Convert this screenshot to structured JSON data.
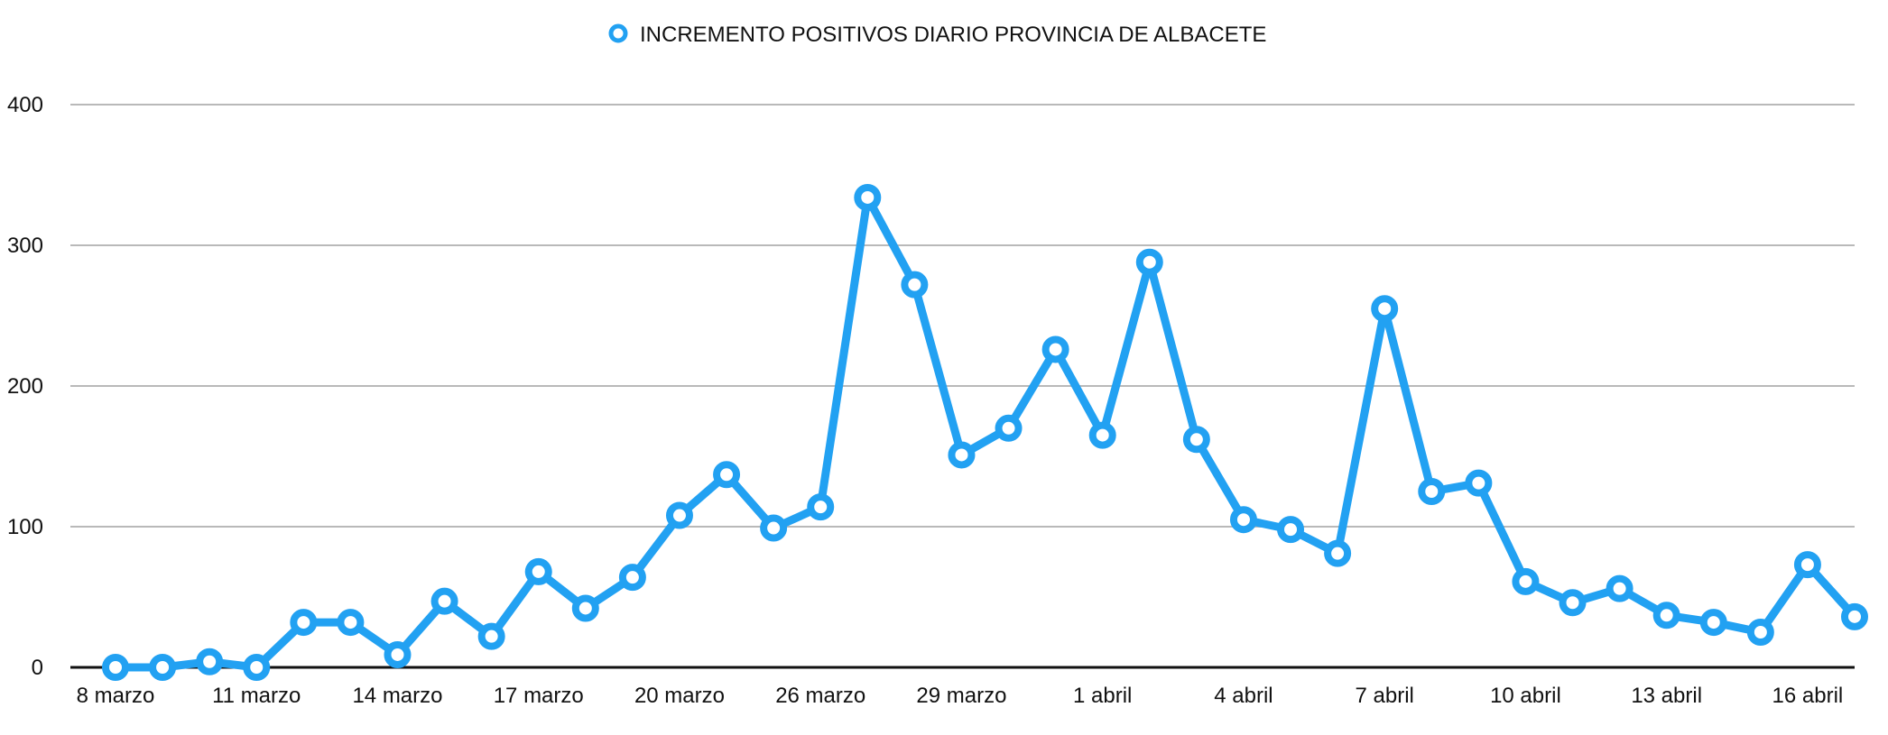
{
  "chart_data": {
    "type": "line",
    "title": "",
    "xlabel": "",
    "ylabel": "",
    "legend": {
      "position": "top-center",
      "label": "INCREMENTO POSITIVOS DIARIO PROVINCIA DE ALBACETE"
    },
    "grid": true,
    "ylim": [
      0,
      400
    ],
    "y_ticks": [
      "0",
      "100",
      "200",
      "300",
      "400"
    ],
    "x_tick_labels": [
      {
        "index": 0,
        "label": "8 marzo"
      },
      {
        "index": 3,
        "label": "11 marzo"
      },
      {
        "index": 6,
        "label": "14 marzo"
      },
      {
        "index": 9,
        "label": "17 marzo"
      },
      {
        "index": 12,
        "label": "20 marzo"
      },
      {
        "index": 15,
        "label": "26 marzo"
      },
      {
        "index": 18,
        "label": "29 marzo"
      },
      {
        "index": 21,
        "label": "1 abril"
      },
      {
        "index": 24,
        "label": "4 abril"
      },
      {
        "index": 27,
        "label": "7 abril"
      },
      {
        "index": 30,
        "label": "10 abril"
      },
      {
        "index": 33,
        "label": "13 abril"
      },
      {
        "index": 36,
        "label": "16 abril"
      }
    ],
    "series": [
      {
        "name": "INCREMENTO POSITIVOS DIARIO PROVINCIA DE ALBACETE",
        "color": "#22a1f2",
        "values": [
          0,
          0,
          4,
          0,
          32,
          32,
          9,
          47,
          22,
          68,
          42,
          64,
          108,
          137,
          99,
          114,
          334,
          272,
          151,
          170,
          226,
          165,
          288,
          162,
          105,
          98,
          81,
          255,
          125,
          131,
          61,
          46,
          56,
          37,
          32,
          25,
          73,
          36
        ]
      }
    ]
  }
}
